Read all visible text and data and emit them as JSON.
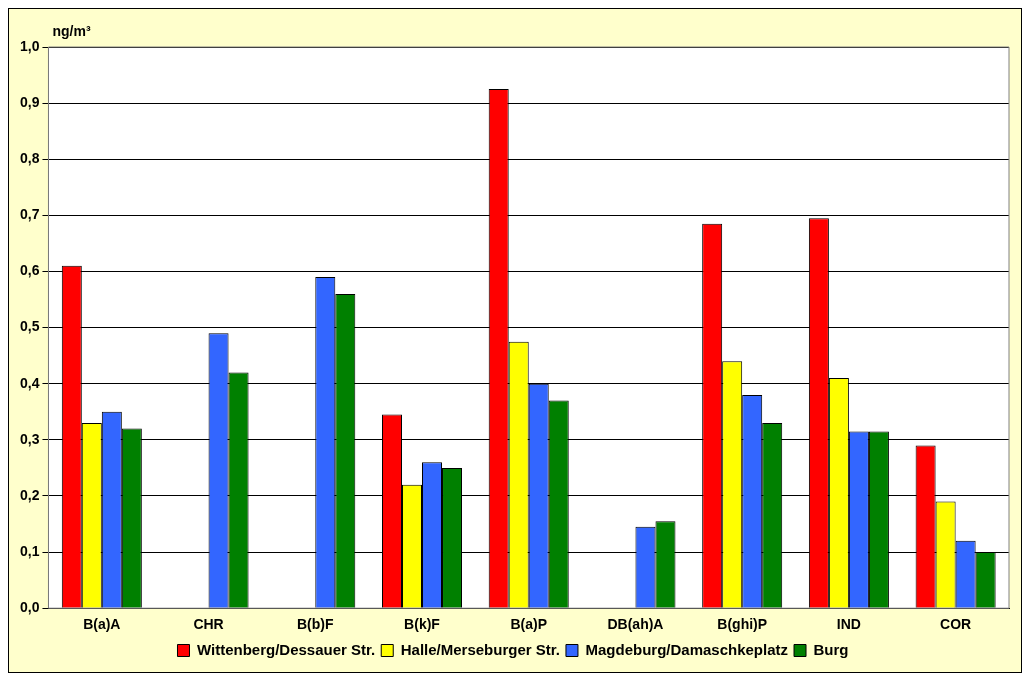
{
  "chart_data": {
    "type": "bar",
    "ylabel": "ng/m³",
    "categories": [
      "B(a)A",
      "CHR",
      "B(b)F",
      "B(k)F",
      "B(a)P",
      "DB(ah)A",
      "B(ghi)P",
      "IND",
      "COR"
    ],
    "series": [
      {
        "name": "Wittenberg/Dessauer Str.",
        "color": "#ff0000",
        "values": [
          0.61,
          null,
          null,
          0.345,
          0.925,
          null,
          0.685,
          0.695,
          0.29
        ]
      },
      {
        "name": "Halle/Merseburger Str.",
        "color": "#ffff00",
        "values": [
          0.33,
          null,
          null,
          0.22,
          0.475,
          null,
          0.44,
          0.41,
          0.19
        ]
      },
      {
        "name": "Magdeburg/Damaschkeplatz",
        "color": "#3366ff",
        "values": [
          0.35,
          0.49,
          0.59,
          0.26,
          0.4,
          0.145,
          0.38,
          0.315,
          0.12
        ]
      },
      {
        "name": "Burg",
        "color": "#008000",
        "values": [
          0.32,
          0.42,
          0.56,
          0.25,
          0.37,
          0.155,
          0.33,
          0.315,
          0.1
        ]
      }
    ],
    "ylim": [
      0,
      1
    ],
    "yticks": [
      {
        "value": 0,
        "label": "0,0"
      },
      {
        "value": 0.1,
        "label": "0,1"
      },
      {
        "value": 0.2,
        "label": "0,2"
      },
      {
        "value": 0.3,
        "label": "0,3"
      },
      {
        "value": 0.4,
        "label": "0,4"
      },
      {
        "value": 0.5,
        "label": "0,5"
      },
      {
        "value": 0.6,
        "label": "0,6"
      },
      {
        "value": 0.7,
        "label": "0,7"
      },
      {
        "value": 0.8,
        "label": "0,8"
      },
      {
        "value": 0.9,
        "label": "0,9"
      },
      {
        "value": 1,
        "label": "1,0"
      }
    ],
    "grid": "y",
    "legend": "bottom"
  }
}
